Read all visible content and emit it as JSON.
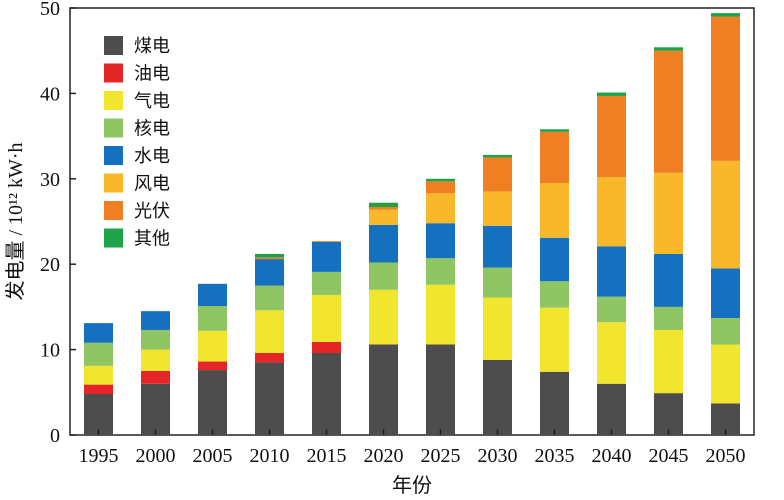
{
  "chart_data": {
    "type": "bar",
    "stacked": true,
    "title": "",
    "xlabel": "年份",
    "ylabel": "发电量 / 10¹² kW·h",
    "ylim": [
      0,
      50
    ],
    "yticks": [
      0,
      10,
      20,
      30,
      40,
      50
    ],
    "grid": false,
    "legend_position": "top-left",
    "categories": [
      "1995",
      "2000",
      "2005",
      "2010",
      "2015",
      "2020",
      "2025",
      "2030",
      "2035",
      "2040",
      "2045",
      "2050"
    ],
    "series": [
      {
        "name": "煤电",
        "color": "#4d4d4d",
        "values": [
          4.8,
          6.0,
          7.6,
          8.5,
          9.6,
          10.6,
          10.6,
          8.8,
          7.4,
          6.0,
          4.9,
          3.7
        ]
      },
      {
        "name": "油电",
        "color": "#e52528",
        "values": [
          1.1,
          1.5,
          1.0,
          1.1,
          1.3,
          0,
          0,
          0,
          0,
          0,
          0,
          0
        ]
      },
      {
        "name": "气电",
        "color": "#f2e52e",
        "values": [
          2.2,
          2.5,
          3.6,
          5.0,
          5.5,
          6.4,
          7.0,
          7.3,
          7.5,
          7.2,
          7.4,
          6.9
        ]
      },
      {
        "name": "核电",
        "color": "#8fc562",
        "values": [
          2.7,
          2.3,
          2.9,
          2.9,
          2.7,
          3.2,
          3.1,
          3.5,
          3.1,
          3.0,
          2.7,
          3.1
        ]
      },
      {
        "name": "水电",
        "color": "#1571bf",
        "values": [
          2.3,
          2.2,
          2.6,
          3.1,
          3.5,
          4.4,
          4.1,
          4.9,
          5.1,
          5.9,
          6.2,
          5.8
        ]
      },
      {
        "name": "风电",
        "color": "#f9b82a",
        "values": [
          0,
          0,
          0,
          0,
          0,
          1.8,
          3.5,
          4.0,
          6.4,
          8.1,
          9.5,
          12.6
        ]
      },
      {
        "name": "光伏",
        "color": "#ef7f22",
        "values": [
          0,
          0,
          0,
          0.2,
          0.1,
          0.3,
          1.4,
          4.0,
          6.0,
          9.5,
          14.3,
          16.9
        ]
      },
      {
        "name": "其他",
        "color": "#1fa34a",
        "values": [
          0,
          0,
          0,
          0.4,
          0,
          0.5,
          0.3,
          0.3,
          0.3,
          0.4,
          0.4,
          0.4
        ]
      }
    ]
  }
}
